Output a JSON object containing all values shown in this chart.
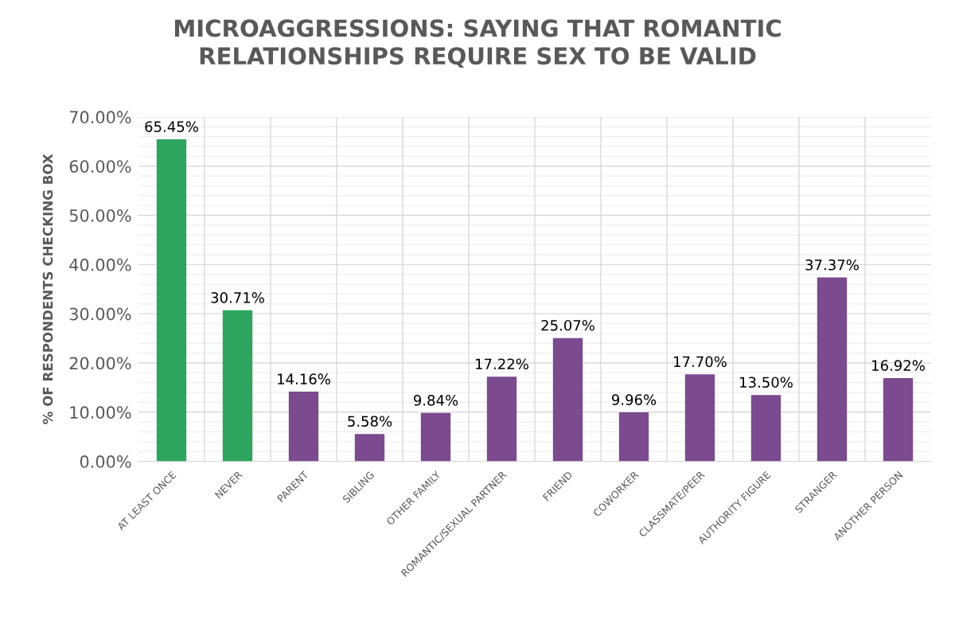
{
  "chart_data": {
    "type": "bar",
    "title": "MICROAGGRESSIONS: SAYING THAT ROMANTIC\nRELATIONSHIPS REQUIRE SEX TO BE VALID",
    "ylabel": "% OF RESPONDENTS CHECKING BOX",
    "categories": [
      "AT LEAST ONCE",
      "NEVER",
      "PARENT",
      "SIBLING",
      "OTHER FAMILY",
      "ROMANTIC/SEXUAL PARTNER",
      "FRIEND",
      "COWORKER",
      "CLASSMATE/PEER",
      "AUTHORITY FIGURE",
      "STRANGER",
      "ANOTHER PERSON"
    ],
    "values": [
      65.45,
      30.71,
      14.16,
      5.58,
      9.84,
      17.22,
      25.07,
      9.96,
      17.7,
      13.5,
      37.37,
      16.92
    ],
    "colors": [
      "#2ea55e",
      "#2ea55e",
      "#7b4a8f",
      "#7b4a8f",
      "#7b4a8f",
      "#7b4a8f",
      "#7b4a8f",
      "#7b4a8f",
      "#7b4a8f",
      "#7b4a8f",
      "#7b4a8f",
      "#7b4a8f"
    ],
    "value_labels": [
      "65.45%",
      "30.71%",
      "14.16%",
      "5.58%",
      "9.84%",
      "17.22%",
      "25.07%",
      "9.96%",
      "17.70%",
      "13.50%",
      "37.37%",
      "16.92%"
    ],
    "ylim": [
      0,
      70
    ],
    "yticks": [
      {
        "value": 0,
        "label": "0.00%"
      },
      {
        "value": 2,
        "label": null
      },
      {
        "value": 4,
        "label": null
      },
      {
        "value": 6,
        "label": null
      },
      {
        "value": 8,
        "label": null
      },
      {
        "value": 10,
        "label": "10.00%"
      },
      {
        "value": 12,
        "label": null
      },
      {
        "value": 14,
        "label": null
      },
      {
        "value": 16,
        "label": null
      },
      {
        "value": 18,
        "label": null
      },
      {
        "value": 20,
        "label": "20.00%"
      },
      {
        "value": 22,
        "label": null
      },
      {
        "value": 24,
        "label": null
      },
      {
        "value": 26,
        "label": null
      },
      {
        "value": 28,
        "label": null
      },
      {
        "value": 30,
        "label": "30.00%"
      },
      {
        "value": 32,
        "label": null
      },
      {
        "value": 34,
        "label": null
      },
      {
        "value": 36,
        "label": null
      },
      {
        "value": 38,
        "label": null
      },
      {
        "value": 40,
        "label": "40.00%"
      },
      {
        "value": 42,
        "label": null
      },
      {
        "value": 44,
        "label": null
      },
      {
        "value": 46,
        "label": null
      },
      {
        "value": 48,
        "label": null
      },
      {
        "value": 50,
        "label": "50.00%"
      },
      {
        "value": 52,
        "label": null
      },
      {
        "value": 54,
        "label": null
      },
      {
        "value": 56,
        "label": null
      },
      {
        "value": 58,
        "label": null
      },
      {
        "value": 60,
        "label": "60.00%"
      },
      {
        "value": 62,
        "label": null
      },
      {
        "value": 64,
        "label": null
      },
      {
        "value": 66,
        "label": null
      },
      {
        "value": 68,
        "label": null
      },
      {
        "value": 70,
        "label": "70.00%"
      }
    ],
    "grid": true
  }
}
